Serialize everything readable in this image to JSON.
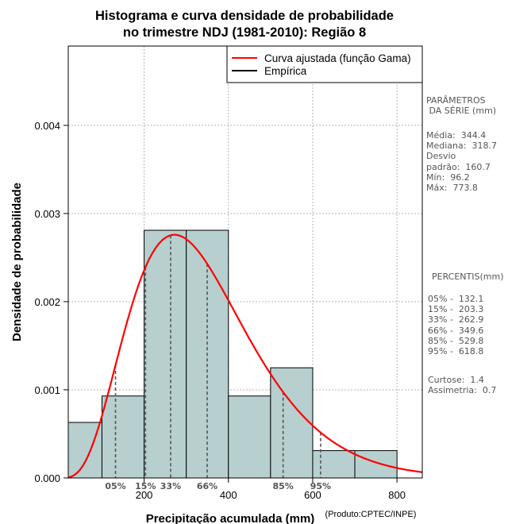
{
  "chart_data": {
    "type": "bar",
    "title_line1": "Histograma e curva densidade de probabilidade",
    "title_line2": "no trimestre NDJ (1981-2010): Região 8",
    "xlabel": "Precipitação acumulada (mm)",
    "xlabel_note": "(Produto:CPTEC/INPE)",
    "ylabel": "Densidade de probabilidade",
    "xlim": [
      20,
      860
    ],
    "ylim": [
      0,
      0.0049
    ],
    "xticks": [
      200,
      400,
      600,
      800
    ],
    "xtick_labels": [
      "200",
      "400",
      "600",
      "800"
    ],
    "yticks": [
      0,
      0.001,
      0.002,
      0.003,
      0.004
    ],
    "ytick_labels": [
      "0.000",
      "0.001",
      "0.002",
      "0.003",
      "0.004"
    ],
    "grid": true,
    "bins": [
      {
        "x0": 20,
        "x1": 100,
        "density": 0.00063
      },
      {
        "x0": 100,
        "x1": 200,
        "density": 0.00093
      },
      {
        "x0": 200,
        "x1": 300,
        "density": 0.00281
      },
      {
        "x0": 300,
        "x1": 400,
        "density": 0.00281
      },
      {
        "x0": 400,
        "x1": 500,
        "density": 0.00093
      },
      {
        "x0": 500,
        "x1": 600,
        "density": 0.00125
      },
      {
        "x0": 600,
        "x1": 700,
        "density": 0.00031
      },
      {
        "x0": 700,
        "x1": 800,
        "density": 0.00031
      }
    ],
    "gamma_fit": {
      "shape": 4.7,
      "scale": 73.5
    },
    "percentile_lines": [
      {
        "label": "05%",
        "x": 132.1
      },
      {
        "label": "15%",
        "x": 203.3
      },
      {
        "label": "33%",
        "x": 262.9
      },
      {
        "label": "66%",
        "x": 349.6
      },
      {
        "label": "85%",
        "x": 529.8
      },
      {
        "label": "95%",
        "x": 618.8
      }
    ],
    "legend": [
      {
        "label": "Curva ajustada (função Gama)",
        "color": "#ff0000"
      },
      {
        "label": "Empírica",
        "color": "#000000"
      }
    ],
    "legend_position": "top-right"
  },
  "colors": {
    "bar_fill": "#b7cfcf",
    "curve": "#ff0000",
    "grid": "#b3b3b3",
    "percentile": "#555555"
  },
  "side_panel": {
    "params_title": "PARÂMETROS\n DA SÉRIE (mm)",
    "stats": "Média:  344.4\nMediana:  318.7\nDesvio\npadrão:  160.7\nMín:  96.2\nMáx:  773.8",
    "percentis_title": "PERCENTIS(mm)",
    "percentis": "05% -  132.1\n15% -  203.3\n33% -  262.9\n66% -  349.6\n85% -  529.8\n95% -  618.8",
    "moments": "Curtose:  1.4\nAssimetria:  0.7"
  }
}
